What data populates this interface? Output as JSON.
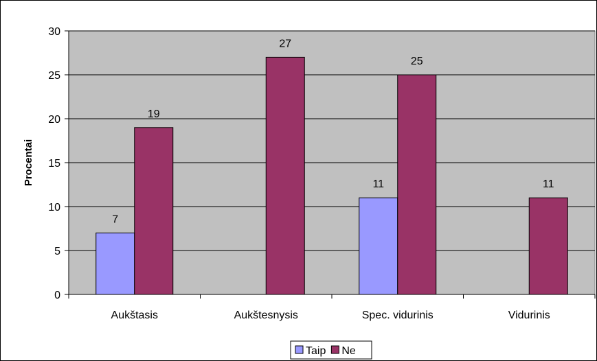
{
  "chart_data": {
    "type": "bar",
    "categories": [
      "Aukštasis",
      "Aukštesnysis",
      "Spec. vidurinis",
      "Vidurinis"
    ],
    "series": [
      {
        "name": "Taip",
        "values": [
          7,
          null,
          11,
          null
        ],
        "color": "#9999FF"
      },
      {
        "name": "Ne",
        "values": [
          19,
          27,
          25,
          11
        ],
        "color": "#993366"
      }
    ],
    "ylabel": "Procentai",
    "ylim": [
      0,
      30
    ],
    "yticks": [
      0,
      5,
      10,
      15,
      20,
      25,
      30
    ],
    "grid": true,
    "legend_position": "bottom",
    "plot_background": "#C0C0C0"
  }
}
